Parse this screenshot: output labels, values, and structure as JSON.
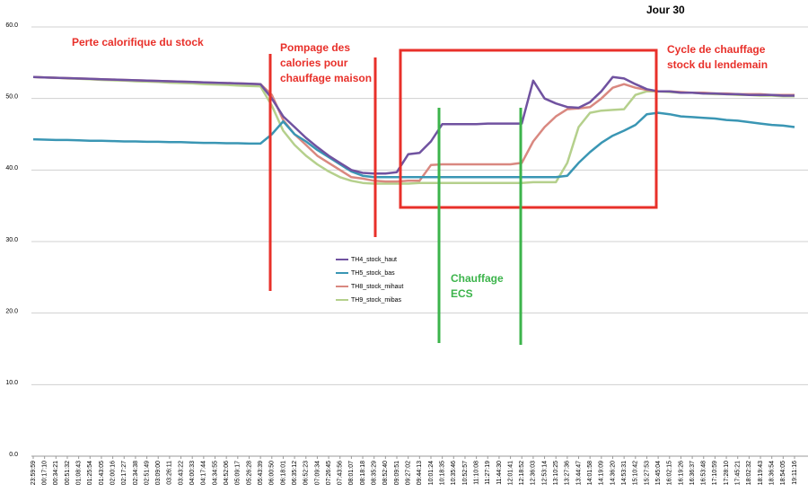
{
  "chart_data": {
    "type": "line",
    "title": "Jour 30",
    "categories": [
      "23:59:59",
      "00:17:10",
      "00:34:21",
      "00:51:32",
      "01:08:43",
      "01:25:54",
      "01:43:05",
      "02:00:16",
      "02:17:27",
      "02:34:38",
      "02:51:49",
      "03:09:00",
      "03:26:11",
      "03:43:22",
      "04:00:33",
      "04:17:44",
      "04:34:55",
      "04:52:06",
      "05:09:17",
      "05:26:28",
      "05:43:39",
      "06:00:50",
      "06:18:01",
      "06:35:12",
      "06:52:23",
      "07:09:34",
      "07:26:45",
      "07:43:56",
      "08:01:07",
      "08:18:18",
      "08:35:29",
      "08:52:40",
      "09:09:51",
      "09:27:02",
      "09:44:13",
      "10:01:24",
      "10:18:35",
      "10:35:46",
      "10:52:57",
      "11:10:08",
      "11:27:19",
      "11:44:30",
      "12:01:41",
      "12:18:52",
      "12:36:03",
      "12:53:14",
      "13:10:25",
      "13:27:36",
      "13:44:47",
      "14:01:58",
      "14:19:09",
      "14:36:20",
      "14:53:31",
      "15:10:42",
      "15:27:53",
      "15:45:04",
      "16:02:15",
      "16:19:26",
      "16:36:37",
      "16:53:48",
      "17:10:59",
      "17:28:10",
      "17:45:21",
      "18:02:32",
      "18:19:43",
      "18:36:54",
      "18:54:05",
      "19:11:16"
    ],
    "series": [
      {
        "name": "TH4_stock_haut",
        "color": "#7052a0",
        "values": [
          53,
          52.95,
          52.9,
          52.85,
          52.8,
          52.75,
          52.7,
          52.65,
          52.6,
          52.55,
          52.5,
          52.45,
          52.4,
          52.35,
          52.3,
          52.25,
          52.2,
          52.15,
          52.1,
          52.05,
          52,
          50,
          47.5,
          46,
          44.5,
          43.2,
          42,
          41,
          40,
          39.6,
          39.5,
          39.5,
          39.7,
          42.2,
          42.4,
          44,
          46.4,
          46.4,
          46.4,
          46.4,
          46.5,
          46.5,
          46.5,
          46.5,
          52.5,
          50,
          49.3,
          48.8,
          48.7,
          49.5,
          51,
          53,
          52.8,
          52,
          51.3,
          51,
          51,
          50.8,
          50.8,
          50.7,
          50.7,
          50.6,
          50.6,
          50.5,
          50.5,
          50.5,
          50.4,
          50.4
        ]
      },
      {
        "name": "TH5_stock_bas",
        "color": "#3a96b4",
        "values": [
          44.3,
          44.25,
          44.2,
          44.2,
          44.15,
          44.1,
          44.1,
          44.05,
          44,
          44,
          43.95,
          43.95,
          43.9,
          43.9,
          43.85,
          43.8,
          43.8,
          43.75,
          43.75,
          43.7,
          43.7,
          45,
          46.8,
          45,
          44,
          42.8,
          41.8,
          40.8,
          39.8,
          39.2,
          39,
          39,
          39,
          39,
          39,
          39,
          39,
          39,
          39,
          39,
          39,
          39,
          39,
          39,
          39,
          39,
          39,
          39.2,
          41,
          42.5,
          43.8,
          44.8,
          45.5,
          46.3,
          47.8,
          48,
          47.8,
          47.5,
          47.4,
          47.3,
          47.2,
          47,
          46.9,
          46.7,
          46.5,
          46.3,
          46.2,
          46
        ]
      },
      {
        "name": "TH8_stock_mihaut",
        "color": "#d98880",
        "values": [
          53,
          52.95,
          52.9,
          52.85,
          52.8,
          52.75,
          52.7,
          52.65,
          52.6,
          52.55,
          52.5,
          52.45,
          52.4,
          52.35,
          52.3,
          52.25,
          52.2,
          52.15,
          52.1,
          52.05,
          52,
          50.5,
          47,
          45,
          43.5,
          42,
          41,
          40,
          39,
          38.8,
          38.5,
          38.4,
          38.4,
          38.5,
          38.5,
          40.7,
          40.8,
          40.8,
          40.8,
          40.8,
          40.8,
          40.8,
          40.8,
          41,
          44,
          46,
          47.5,
          48.5,
          48.6,
          48.8,
          50,
          51.5,
          52,
          51.5,
          51.2,
          51,
          51,
          50.9,
          50.8,
          50.8,
          50.7,
          50.7,
          50.6,
          50.6,
          50.6,
          50.5,
          50.5,
          50.5
        ]
      },
      {
        "name": "TH9_stock_mibas",
        "color": "#b5d08c",
        "values": [
          53,
          52.95,
          52.9,
          52.8,
          52.75,
          52.7,
          52.6,
          52.55,
          52.5,
          52.4,
          52.35,
          52.3,
          52.2,
          52.15,
          52.1,
          52,
          51.95,
          51.9,
          51.8,
          51.75,
          51.7,
          49,
          45.5,
          43.5,
          42,
          40.8,
          39.8,
          39,
          38.5,
          38.2,
          38.1,
          38.1,
          38.1,
          38.1,
          38.2,
          38.2,
          38.2,
          38.2,
          38.2,
          38.2,
          38.2,
          38.2,
          38.2,
          38.2,
          38.3,
          38.3,
          38.3,
          41,
          46,
          48,
          48.3,
          48.4,
          48.5,
          50.5,
          51,
          51,
          50.9,
          50.8,
          50.8,
          50.7,
          50.6,
          50.6,
          50.5,
          50.5,
          50.4,
          50.4,
          50.3,
          50.3
        ]
      }
    ],
    "ylim": [
      0,
      60
    ],
    "yticks": [
      {
        "value": 0,
        "label": "0.0"
      },
      {
        "value": 10,
        "label": "10.0"
      },
      {
        "value": 20,
        "label": "20.0"
      },
      {
        "value": 30,
        "label": "30.0"
      },
      {
        "value": 40,
        "label": "40.0"
      },
      {
        "value": 50,
        "label": "50.0"
      },
      {
        "value": 60,
        "label": "60.0"
      }
    ],
    "grid": true,
    "annotations": [
      {
        "lines": [
          "Perte calorifique du stock"
        ],
        "color": "#e8302a"
      },
      {
        "lines": [
          "Pompage des",
          "calories pour",
          "chauffage maison"
        ],
        "color": "#e8302a"
      },
      {
        "lines": [
          "Cycle de chauffage",
          "stock du lendemain"
        ],
        "color": "#e8302a"
      },
      {
        "lines": [
          "Chauffage",
          "ECS"
        ],
        "color": "#3cb44b"
      }
    ]
  }
}
